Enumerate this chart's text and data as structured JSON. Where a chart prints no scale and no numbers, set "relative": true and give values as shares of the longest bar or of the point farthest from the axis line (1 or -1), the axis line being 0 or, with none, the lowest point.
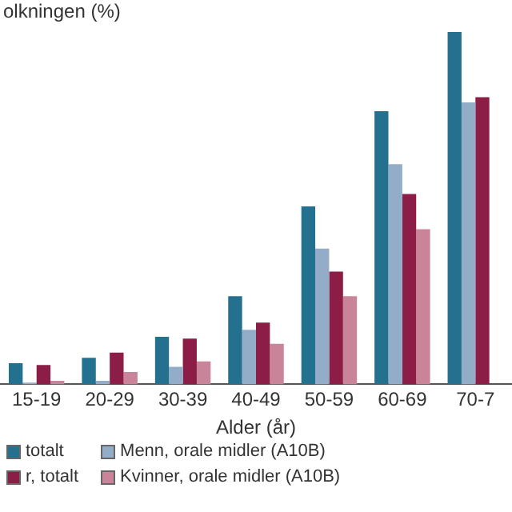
{
  "chart_data": {
    "type": "bar",
    "ylabel": "olkningen (%)",
    "xlabel": "Alder (år)",
    "relative": true,
    "legend": "bottom",
    "grid": false,
    "categories": [
      "15-19",
      "20-29",
      "30-39",
      "40-49",
      "50-59",
      "60-69",
      "70-7"
    ],
    "series": [
      {
        "name": "totalt",
        "color": "#24708f",
        "values": [
          0.06,
          0.075,
          0.135,
          0.25,
          0.505,
          0.775,
          1.0
        ]
      },
      {
        "name": "Menn, orale midler (A10B)",
        "color": "#93adc8",
        "values": [
          0.005,
          0.01,
          0.05,
          0.155,
          0.385,
          0.625,
          0.8
        ]
      },
      {
        "name": "r, totalt",
        "color": "#8c1d46",
        "values": [
          0.055,
          0.09,
          0.13,
          0.175,
          0.32,
          0.54,
          0.815
        ]
      },
      {
        "name": "Kvinner, orale midler (A10B)",
        "color": "#c9849a",
        "values": [
          0.01,
          0.035,
          0.065,
          0.115,
          0.25,
          0.44,
          null
        ]
      }
    ]
  }
}
